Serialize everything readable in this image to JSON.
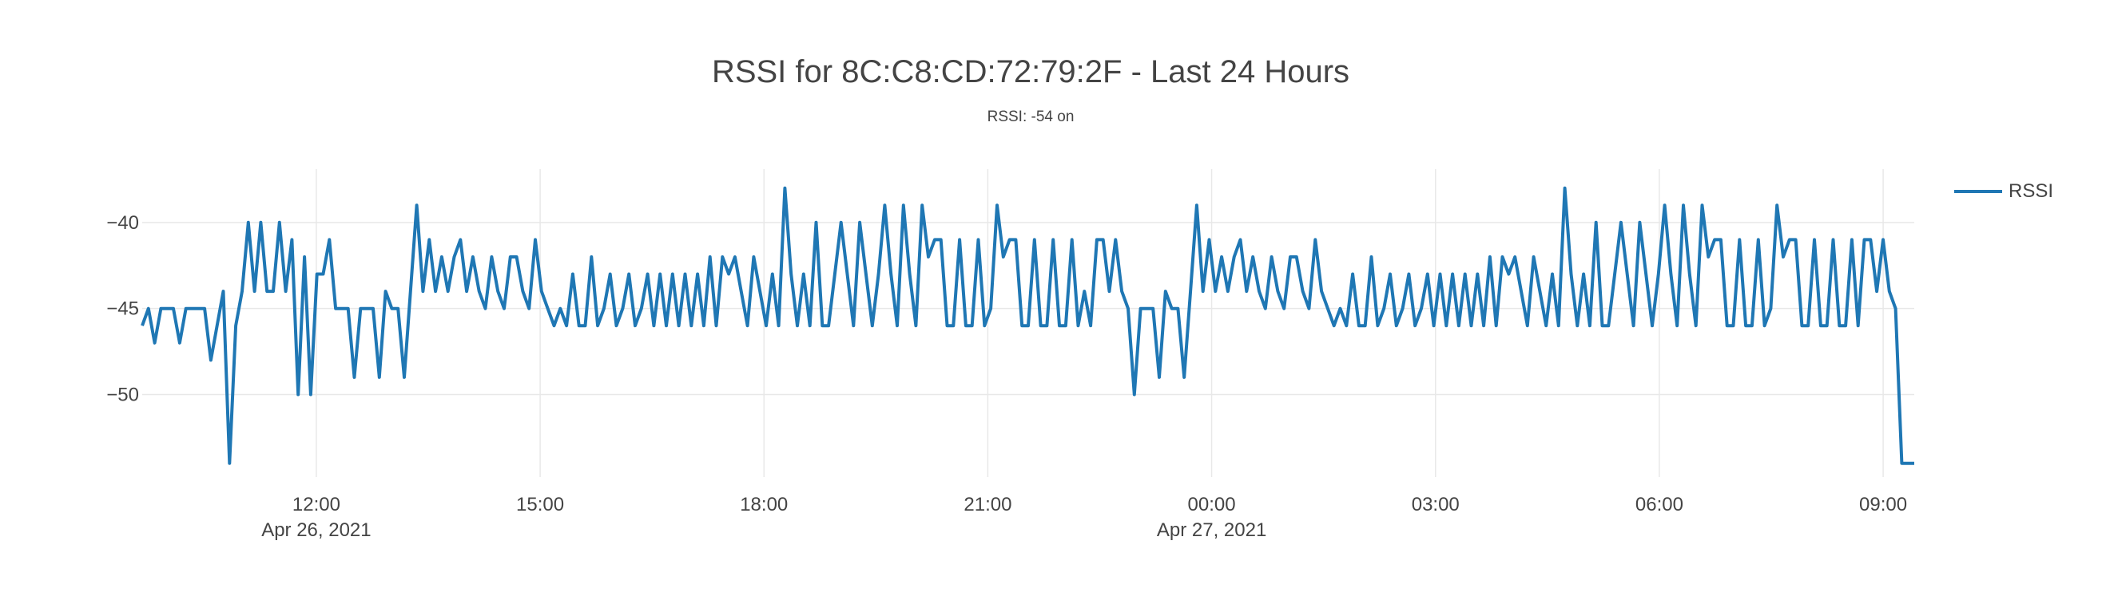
{
  "title": "RSSI for 8C:C8:CD:72:79:2F - Last 24 Hours",
  "subtitle": "RSSI: -54 on",
  "colors": {
    "line": "#1f77b4",
    "grid": "#e8e8e8",
    "text": "#444444"
  },
  "chart_data": {
    "type": "line",
    "title": "RSSI for 8C:C8:CD:72:79:2F - Last 24 Hours",
    "subtitle": "RSSI: -54 on",
    "xlabel": "",
    "ylabel": "",
    "grid": true,
    "legend": "top-right",
    "x_range": [
      "2021-04-26 09:40",
      "2021-04-27 09:25"
    ],
    "y_range": [
      -54.8,
      -36.9
    ],
    "y_ticks": [
      -40,
      -45,
      -50
    ],
    "x_ticks": [
      {
        "time": "2021-04-26 12:00",
        "label": "12:00",
        "date": "Apr 26, 2021"
      },
      {
        "time": "2021-04-26 15:00",
        "label": "15:00",
        "date": ""
      },
      {
        "time": "2021-04-26 18:00",
        "label": "18:00",
        "date": ""
      },
      {
        "time": "2021-04-26 21:00",
        "label": "21:00",
        "date": ""
      },
      {
        "time": "2021-04-27 00:00",
        "label": "00:00",
        "date": "Apr 27, 2021"
      },
      {
        "time": "2021-04-27 03:00",
        "label": "03:00",
        "date": ""
      },
      {
        "time": "2021-04-27 06:00",
        "label": "06:00",
        "date": ""
      },
      {
        "time": "2021-04-27 09:00",
        "label": "09:00",
        "date": ""
      }
    ],
    "series": [
      {
        "name": "RSSI",
        "x_start": "2021-04-26 09:40",
        "x_end": "2021-04-27 09:25",
        "values": [
          -46,
          -45,
          -47,
          -45,
          -45,
          -45,
          -47,
          -45,
          -45,
          -45,
          -45,
          -48,
          -46,
          -44,
          -54,
          -46,
          -44,
          -40,
          -44,
          -40,
          -44,
          -44,
          -40,
          -44,
          -41,
          -50,
          -42,
          -50,
          -43,
          -43,
          -41,
          -45,
          -45,
          -45,
          -49,
          -45,
          -45,
          -45,
          -49,
          -44,
          -45,
          -45,
          -49,
          -44,
          -39,
          -44,
          -41,
          -44,
          -42,
          -44,
          -42,
          -41,
          -44,
          -42,
          -44,
          -45,
          -42,
          -44,
          -45,
          -42,
          -42,
          -44,
          -45,
          -41,
          -44,
          -45,
          -46,
          -45,
          -46,
          -43,
          -46,
          -46,
          -42,
          -46,
          -45,
          -43,
          -46,
          -45,
          -43,
          -46,
          -45,
          -43,
          -46,
          -43,
          -46,
          -43,
          -46,
          -43,
          -46,
          -43,
          -46,
          -42,
          -46,
          -42,
          -43,
          -42,
          -44,
          -46,
          -42,
          -44,
          -46,
          -43,
          -46,
          -38,
          -43,
          -46,
          -43,
          -46,
          -40,
          -46,
          -46,
          -43,
          -40,
          -43,
          -46,
          -40,
          -43,
          -46,
          -43,
          -39,
          -43,
          -46,
          -39,
          -43,
          -46,
          -39,
          -42,
          -41,
          -41,
          -46,
          -46,
          -41,
          -46,
          -46,
          -41,
          -46,
          -45,
          -39,
          -42,
          -41,
          -41,
          -46,
          -46,
          -41,
          -46,
          -46,
          -41,
          -46,
          -46,
          -41,
          -46,
          -44,
          -46,
          -41,
          -41,
          -44,
          -41,
          -44,
          -45,
          -50,
          -45,
          -45,
          -45,
          -49,
          -44,
          -45,
          -45,
          -49,
          -44,
          -39,
          -44,
          -41,
          -44,
          -42,
          -44,
          -42,
          -41,
          -44,
          -42,
          -44,
          -45,
          -42,
          -44,
          -45,
          -42,
          -42,
          -44,
          -45,
          -41,
          -44,
          -45,
          -46,
          -45,
          -46,
          -43,
          -46,
          -46,
          -42,
          -46,
          -45,
          -43,
          -46,
          -45,
          -43,
          -46,
          -45,
          -43,
          -46,
          -43,
          -46,
          -43,
          -46,
          -43,
          -46,
          -43,
          -46,
          -42,
          -46,
          -42,
          -43,
          -42,
          -44,
          -46,
          -42,
          -44,
          -46,
          -43,
          -46,
          -38,
          -43,
          -46,
          -43,
          -46,
          -40,
          -46,
          -46,
          -43,
          -40,
          -43,
          -46,
          -40,
          -43,
          -46,
          -43,
          -39,
          -43,
          -46,
          -39,
          -43,
          -46,
          -39,
          -42,
          -41,
          -41,
          -46,
          -46,
          -41,
          -46,
          -46,
          -41,
          -46,
          -45,
          -39,
          -42,
          -41,
          -41,
          -46,
          -46,
          -41,
          -46,
          -46,
          -41,
          -46,
          -46,
          -41,
          -46,
          -41,
          -41,
          -44,
          -41,
          -44,
          -45,
          -54,
          -54,
          -54
        ]
      }
    ]
  }
}
